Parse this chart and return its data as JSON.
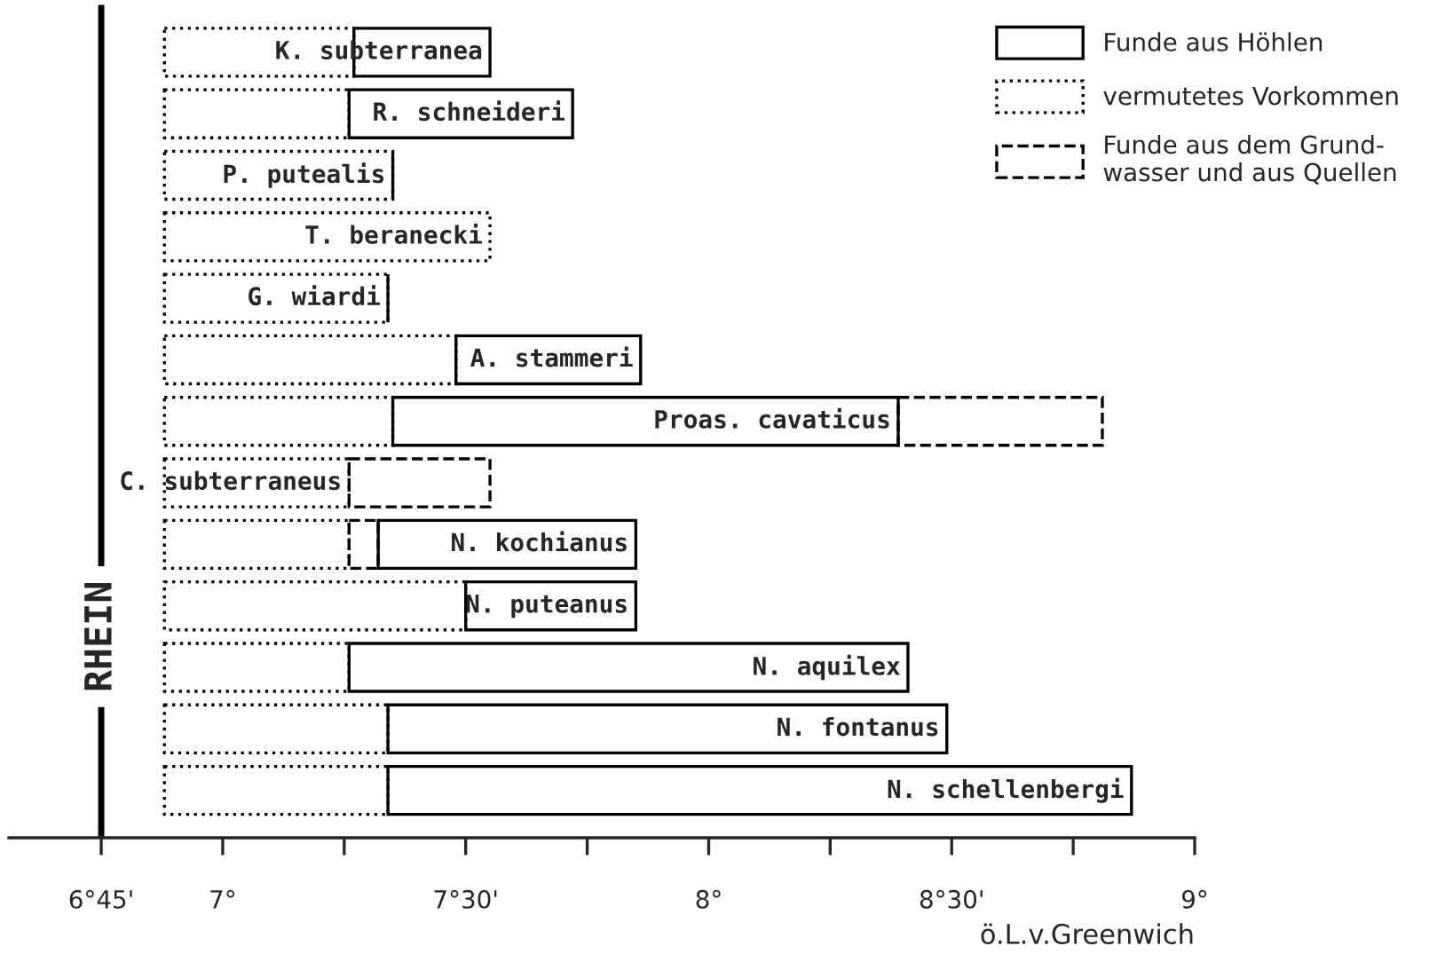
{
  "chart_data": {
    "type": "bar",
    "orientation": "horizontal",
    "xlabel": "ö.L.v.Greenwich",
    "categories": [
      "K. subterranea",
      "R. schneideri",
      "P. putealis",
      "T. beranecki",
      "G. wiardi",
      "A. stammeri",
      "Proas. cavaticus",
      "C. subterraneus",
      "N. kochianus",
      "N. puteanus",
      "N. aquilex",
      "N. fontanus",
      "N. schellenbergi"
    ],
    "series": [
      {
        "name": "Funde aus Höhlen",
        "color": "#000000",
        "line_style": "solid",
        "base": [
          7.27,
          7.26,
          7.35,
          null,
          7.34,
          7.48,
          7.35,
          null,
          7.32,
          7.5,
          7.26,
          7.34,
          7.34
        ],
        "values": [
          0.28,
          0.46,
          0,
          null,
          0,
          0.38,
          1.04,
          null,
          0.53,
          0.35,
          1.15,
          1.15,
          1.53
        ]
      },
      {
        "name": "vermutetes Vorkommen",
        "color": "#000000",
        "line_style": "dotted",
        "base": [
          6.88,
          6.88,
          6.88,
          6.88,
          6.88,
          6.88,
          6.88,
          6.88,
          6.88,
          6.88,
          6.88,
          6.88,
          6.88
        ],
        "values": [
          0.39,
          0.38,
          0.47,
          0.67,
          0.46,
          0.6,
          0.47,
          0.38,
          0.38,
          0.62,
          0.38,
          0.46,
          0.46
        ]
      },
      {
        "name": "Funde aus dem Grund-\nwasser und aus Quellen",
        "color": "#000000",
        "line_style": "dashed",
        "base": [
          null,
          null,
          null,
          null,
          null,
          null,
          8.39,
          7.26,
          7.26,
          null,
          null,
          null,
          null
        ],
        "values": [
          null,
          null,
          null,
          null,
          null,
          null,
          0.42,
          0.29,
          0.06,
          null,
          null,
          null,
          null
        ]
      }
    ],
    "xlim": [
      6.56,
      9
    ],
    "xticks": [
      {
        "value": 6.75,
        "label": "6°45'"
      },
      {
        "value": 7,
        "label": "7°"
      },
      {
        "value": 7.25,
        "label": null
      },
      {
        "value": 7.5,
        "label": "7°30'"
      },
      {
        "value": 7.75,
        "label": null
      },
      {
        "value": 8,
        "label": "8°"
      },
      {
        "value": 8.25,
        "label": null
      },
      {
        "value": 8.5,
        "label": "8°30'"
      },
      {
        "value": 8.75,
        "label": null
      },
      {
        "value": 9,
        "label": "9°"
      }
    ],
    "ref_lines": [
      {
        "axis": "x",
        "value": 6.75,
        "label": "RHEIN",
        "color": "#000000"
      }
    ],
    "tick_labels": "x",
    "legend": "top right",
    "grid": false
  }
}
